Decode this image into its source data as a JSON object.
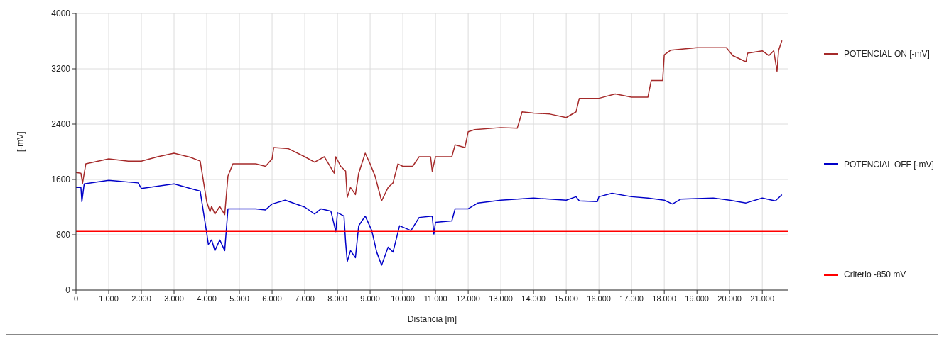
{
  "chart_data": {
    "type": "line",
    "xlabel": "Distancia [m]",
    "ylabel": "[-mV]",
    "xlim": [
      0,
      21800
    ],
    "ylim": [
      0,
      4000
    ],
    "xticks": [
      0,
      {
        "value": 1000,
        "label": "1.000"
      },
      {
        "value": 2000,
        "label": "2.000"
      },
      {
        "value": 3000,
        "label": "3.000"
      },
      {
        "value": 4000,
        "label": "4.000"
      },
      {
        "value": 5000,
        "label": "5.000"
      },
      {
        "value": 6000,
        "label": "6.000"
      },
      {
        "value": 7000,
        "label": "7.000"
      },
      {
        "value": 8000,
        "label": "8.000"
      },
      {
        "value": 9000,
        "label": "9.000"
      },
      {
        "value": 10000,
        "label": "10.000"
      },
      {
        "value": 11000,
        "label": "11.000"
      },
      {
        "value": 12000,
        "label": "12.000"
      },
      {
        "value": 13000,
        "label": "13.000"
      },
      {
        "value": 14000,
        "label": "14.000"
      },
      {
        "value": 15000,
        "label": "15.000"
      },
      {
        "value": 16000,
        "label": "16.000"
      },
      {
        "value": 17000,
        "label": "17.000"
      },
      {
        "value": 18000,
        "label": "18.000"
      },
      {
        "value": 19000,
        "label": "19.000"
      },
      {
        "value": 20000,
        "label": "20.000"
      },
      {
        "value": 21000,
        "label": "21.000"
      }
    ],
    "yticks": [
      0,
      800,
      1600,
      2400,
      3200,
      4000
    ],
    "grid": true,
    "legend": "right",
    "marker": "none",
    "series": [
      {
        "name": "POTENCIAL ON [-mV]",
        "color": "#a52a2a",
        "x": [
          0,
          150,
          200,
          300,
          1000,
          1600,
          2000,
          2500,
          3000,
          3500,
          3800,
          4000,
          4100,
          4150,
          4250,
          4400,
          4550,
          4650,
          4800,
          5500,
          5800,
          6000,
          6050,
          6500,
          7000,
          7300,
          7600,
          7900,
          7950,
          8100,
          8250,
          8300,
          8400,
          8550,
          8650,
          8850,
          9000,
          9150,
          9350,
          9550,
          9700,
          9850,
          10000,
          10300,
          10500,
          10850,
          10900,
          11000,
          11500,
          11600,
          11900,
          12000,
          12200,
          13000,
          13500,
          13650,
          14000,
          14500,
          15000,
          15300,
          15400,
          16000,
          16500,
          17000,
          17500,
          17600,
          17950,
          18000,
          18200,
          19000,
          19900,
          20100,
          20500,
          20550,
          21000,
          21200,
          21350,
          21450,
          21500,
          21600
        ],
        "values": [
          1700,
          1690,
          1546,
          1825,
          1897,
          1865,
          1865,
          1928,
          1980,
          1920,
          1865,
          1278,
          1134,
          1210,
          1100,
          1210,
          1090,
          1648,
          1825,
          1825,
          1790,
          1897,
          2062,
          2045,
          1928,
          1850,
          1928,
          1690,
          1928,
          1790,
          1720,
          1340,
          1484,
          1380,
          1690,
          1980,
          1825,
          1650,
          1290,
          1484,
          1550,
          1825,
          1790,
          1790,
          1928,
          1928,
          1720,
          1928,
          1928,
          2100,
          2062,
          2289,
          2320,
          2350,
          2340,
          2577,
          2560,
          2545,
          2495,
          2577,
          2773,
          2773,
          2835,
          2790,
          2790,
          3030,
          3030,
          3402,
          3470,
          3505,
          3505,
          3390,
          3300,
          3425,
          3460,
          3390,
          3460,
          3165,
          3470,
          3608
        ]
      },
      {
        "name": "POTENCIAL OFF [-mV]",
        "color": "#0000c8",
        "x": [
          0,
          150,
          180,
          250,
          1000,
          1900,
          2000,
          3000,
          3500,
          3800,
          4000,
          4050,
          4150,
          4250,
          4400,
          4550,
          4650,
          5500,
          5800,
          6000,
          6400,
          7000,
          7300,
          7500,
          7800,
          7950,
          8000,
          8200,
          8250,
          8300,
          8400,
          8550,
          8650,
          8850,
          9050,
          9200,
          9350,
          9550,
          9700,
          9900,
          10250,
          10500,
          10900,
          10950,
          11000,
          11500,
          11600,
          12000,
          12300,
          13000,
          14000,
          14500,
          15000,
          15300,
          15400,
          15950,
          16000,
          16400,
          17000,
          17500,
          18000,
          18250,
          18500,
          19500,
          20000,
          20500,
          21000,
          21400,
          21600
        ],
        "values": [
          1484,
          1484,
          1278,
          1535,
          1587,
          1550,
          1470,
          1535,
          1470,
          1430,
          825,
          660,
          725,
          570,
          725,
          570,
          1175,
          1175,
          1160,
          1245,
          1300,
          1200,
          1100,
          1175,
          1140,
          845,
          1120,
          1070,
          694,
          412,
          570,
          468,
          930,
          1070,
          860,
          550,
          360,
          620,
          550,
          930,
          860,
          1050,
          1070,
          810,
          980,
          1000,
          1175,
          1175,
          1260,
          1300,
          1330,
          1315,
          1300,
          1350,
          1290,
          1280,
          1350,
          1400,
          1350,
          1330,
          1300,
          1245,
          1315,
          1330,
          1300,
          1260,
          1330,
          1290,
          1380
        ]
      },
      {
        "name": "Criterio -850 mV",
        "color": "#ff0000",
        "x": [
          0,
          21800
        ],
        "values": [
          850,
          850
        ]
      }
    ]
  }
}
